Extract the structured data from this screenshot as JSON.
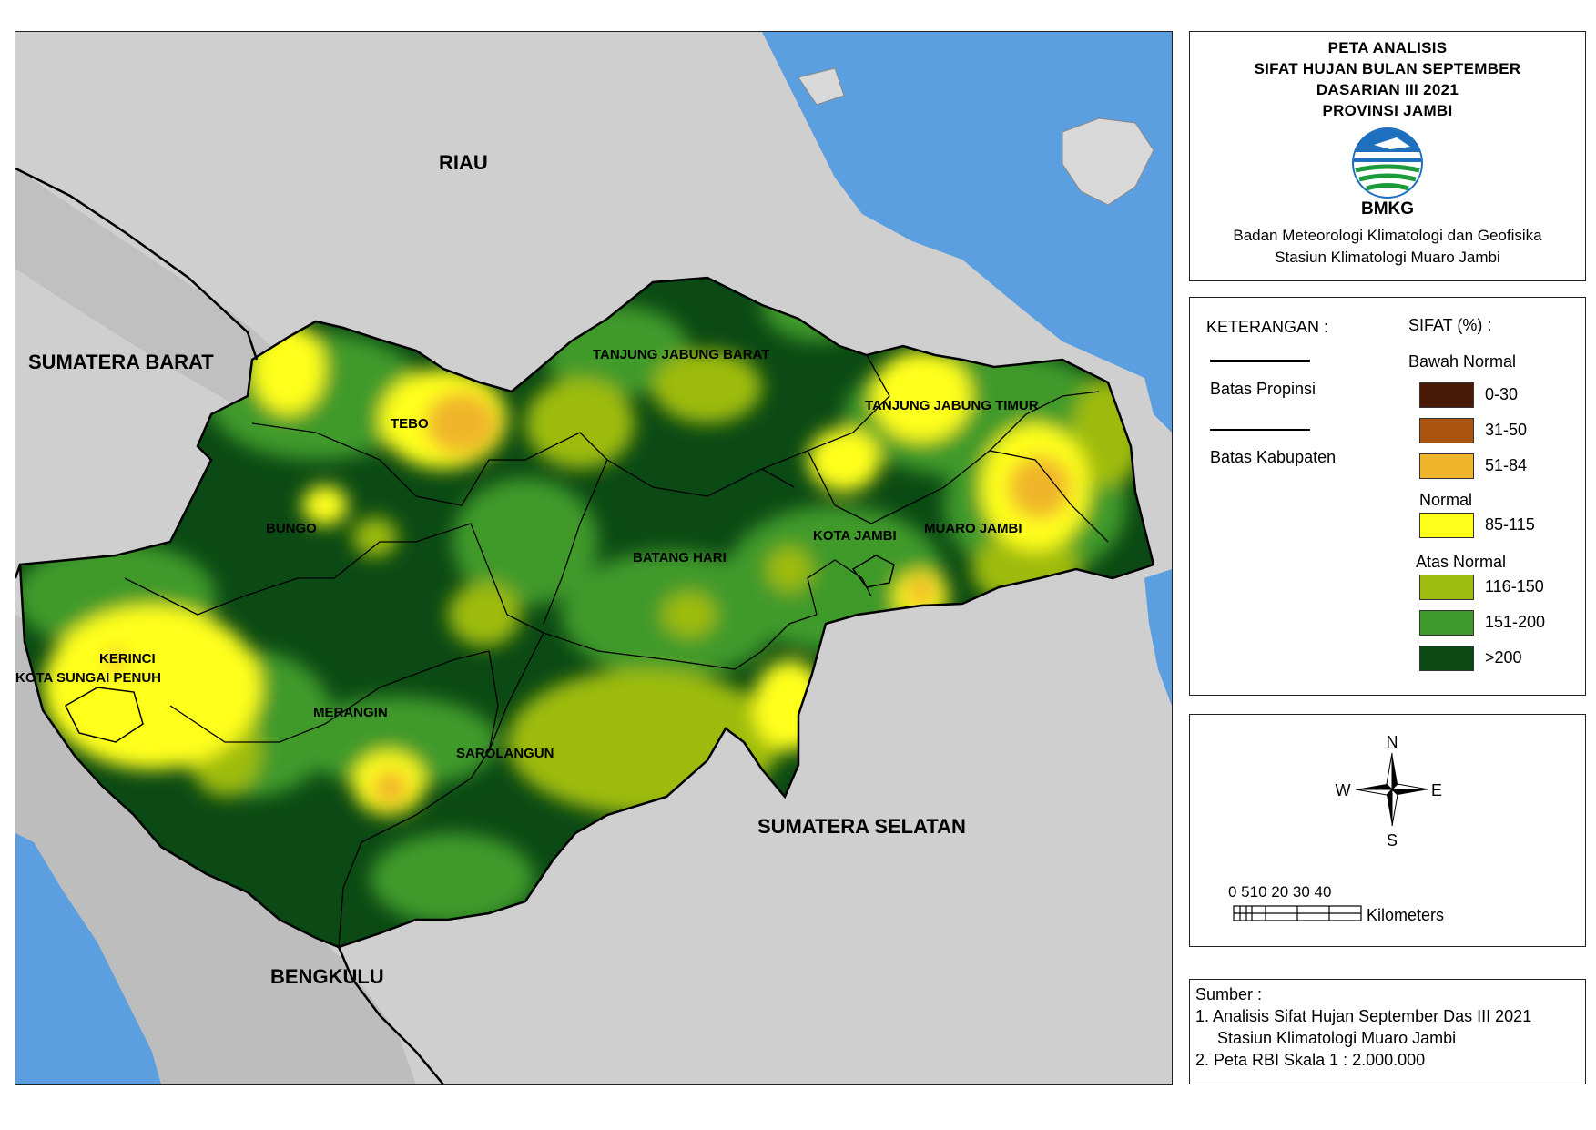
{
  "title": {
    "line1": "PETA ANALISIS",
    "line2": "SIFAT HUJAN BULAN SEPTEMBER",
    "line3": "DASARIAN III 2021",
    "line4": "PROVINSI JAMBI"
  },
  "agency": {
    "logo_text": "BMKG",
    "name": "Badan Meteorologi Klimatologi dan Geofisika",
    "station": "Stasiun Klimatologi Muaro Jambi"
  },
  "legend": {
    "heading_left": "KETERANGAN :",
    "heading_right": "SIFAT (%) :",
    "line_items": [
      {
        "label": "Batas Propinsi"
      },
      {
        "label": "Batas Kabupaten"
      }
    ],
    "groups": [
      {
        "name": "Bawah Normal",
        "classes": [
          {
            "label": "0-30",
            "color": "#4a1a08"
          },
          {
            "label": "31-50",
            "color": "#a8540f"
          },
          {
            "label": "51-84",
            "color": "#f0b52a"
          }
        ]
      },
      {
        "name": "Normal",
        "classes": [
          {
            "label": "85-115",
            "color": "#ffff1a"
          }
        ]
      },
      {
        "name": "Atas Normal",
        "classes": [
          {
            "label": "116-150",
            "color": "#9ebb10"
          },
          {
            "label": "151-200",
            "color": "#3f9a2c"
          },
          {
            "label": ">200",
            "color": "#0b4a14"
          }
        ]
      }
    ]
  },
  "compass": {
    "n": "N",
    "s": "S",
    "e": "E",
    "w": "W"
  },
  "scale": {
    "ticks": "0 510 20 30 40",
    "unit": "Kilometers"
  },
  "source": {
    "heading": "Sumber :",
    "line1": "1. Analisis Sifat Hujan September Das III 2021",
    "line2": "Stasiun Klimatologi Muaro Jambi",
    "line3": "2. Peta RBI Skala 1 : 2.000.000"
  },
  "map_labels": {
    "riau": "RIAU",
    "sumatera_barat": "SUMATERA BARAT",
    "sumatera_selatan": "SUMATERA SELATAN",
    "bengkulu": "BENGKULU",
    "tebo": "TEBO",
    "tanjung_jabung_barat": "TANJUNG JABUNG BARAT",
    "tanjung_jabung_timur": "TANJUNG JABUNG TIMUR",
    "bungo": "BUNGO",
    "kota_jambi": "KOTA JAMBI",
    "muaro_jambi": "MUARO JAMBI",
    "batang_hari": "BATANG HARI",
    "kerinci": "KERINCI",
    "kota_sungai_penuh": "KOTA SUNGAI PENUH",
    "merangin": "MERANGIN",
    "sarolangun": "SAROLANGUN"
  },
  "colors": {
    "sea": "#5b9fe0",
    "land": "#cfcfcf",
    "class_51_84": "#f0b52a",
    "class_85_115": "#ffff1a",
    "class_116_150": "#9ebb10",
    "class_151_200": "#3f9a2c",
    "class_over_200": "#0b4a14"
  }
}
